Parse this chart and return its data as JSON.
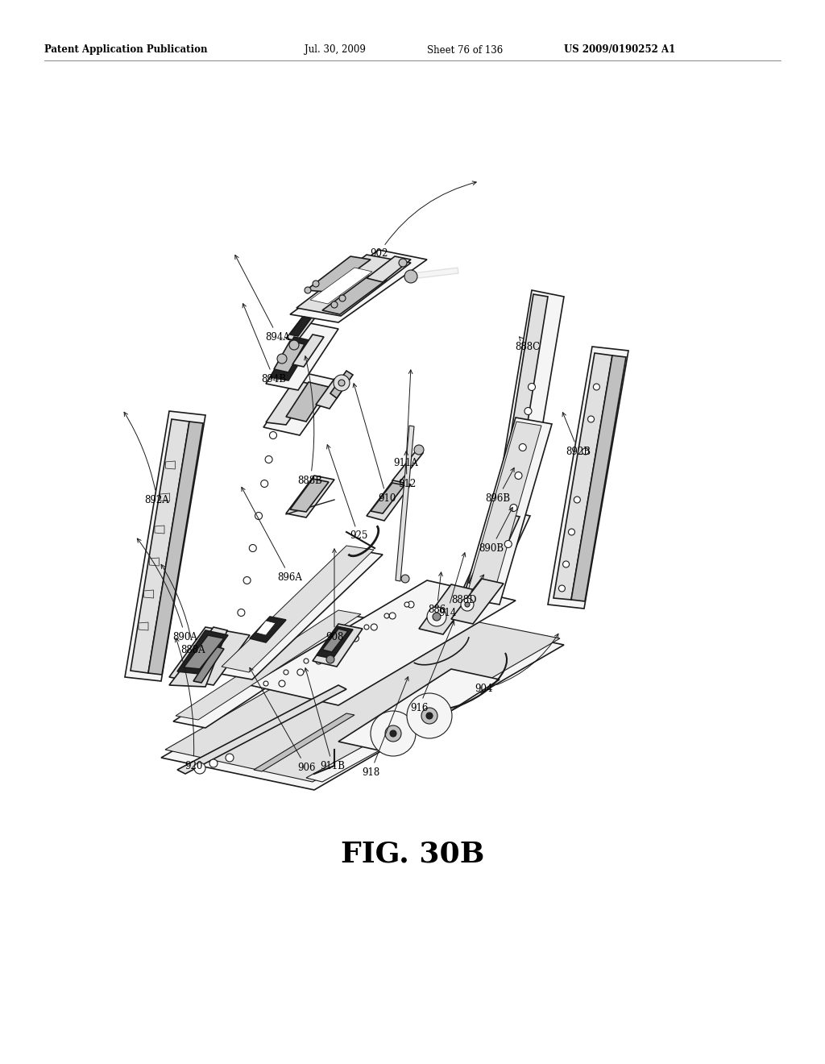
{
  "background_color": "#ffffff",
  "header_left": "Patent Application Publication",
  "header_mid1": "Jul. 30, 2009",
  "header_mid2": "Sheet 76 of 136",
  "header_right": "US 2009/0190252 A1",
  "figure_label": "FIG. 30B",
  "edge_color": "#1a1a1a",
  "face_light": "#f5f5f5",
  "face_mid": "#e0e0e0",
  "face_dark": "#c0c0c0",
  "face_darker": "#909090",
  "face_black": "#222222"
}
